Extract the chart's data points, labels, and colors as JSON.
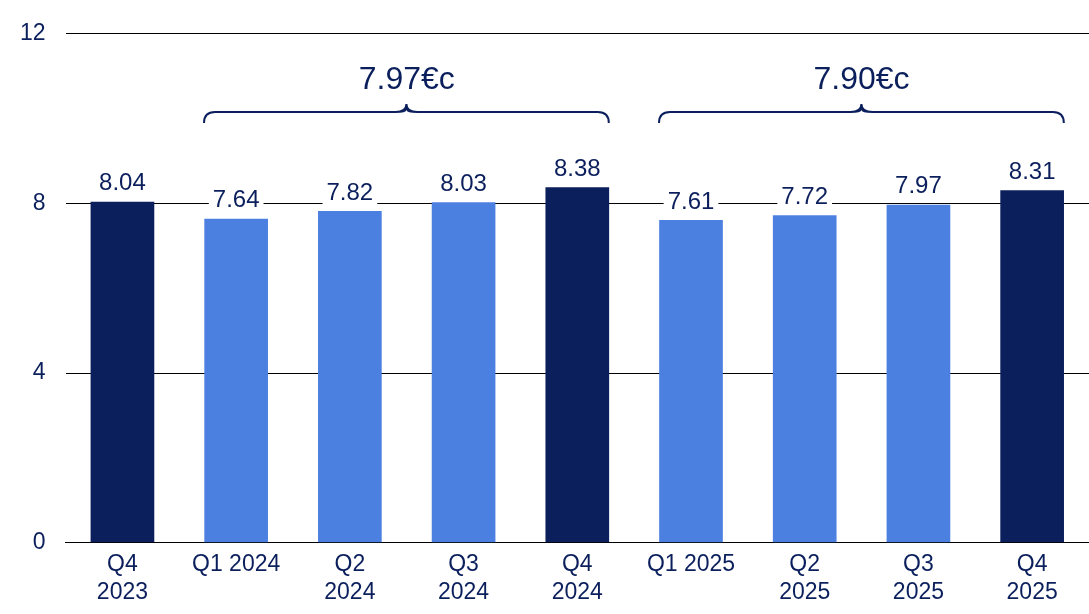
{
  "chart_data": {
    "type": "bar",
    "categories": [
      "Q4\n2023",
      "Q1 2024",
      "Q2\n2024",
      "Q3\n2024",
      "Q4\n2024",
      "Q1 2025",
      "Q2\n2025",
      "Q3\n2025",
      "Q4\n2025"
    ],
    "values": [
      8.04,
      7.64,
      7.82,
      8.03,
      8.38,
      7.61,
      7.72,
      7.97,
      8.31
    ],
    "colors": [
      "#0b1f5c",
      "#4c80e0",
      "#4c80e0",
      "#4c80e0",
      "#0b1f5c",
      "#4c80e0",
      "#4c80e0",
      "#4c80e0",
      "#0b1f5c"
    ],
    "ylim": [
      0,
      12
    ],
    "yticks": [
      0,
      4,
      8,
      12
    ],
    "grid": "y",
    "legend": false,
    "data_labels": true,
    "annotations": [
      "7.97€c",
      "7.90€c"
    ]
  }
}
